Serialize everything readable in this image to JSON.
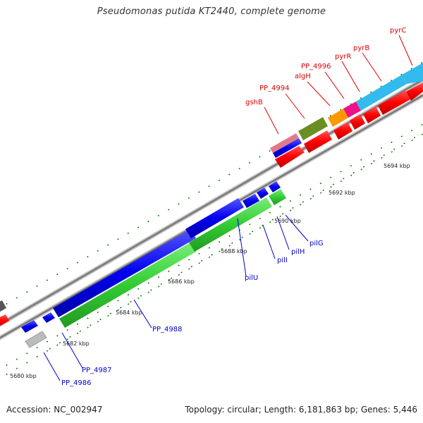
{
  "title": "Pseudomonas putida KT2440, complete genome",
  "footer": {
    "accession": "Accession: NC_002947",
    "summary": "Topology: circular; Length: 6,181,863 bp; Genes: 5,446"
  },
  "scale_labels": [
    "5680 kbp",
    "5682 kbp",
    "5684 kbp",
    "5686 kbp",
    "5688 kbp",
    "5690 kbp",
    "5692 kbp",
    "5694 kbp"
  ],
  "reverse_strand_labels": [
    "PP_4986",
    "PP_4987",
    "PP_4988",
    "pilU",
    "pilI",
    "pilH",
    "pilG"
  ],
  "forward_strand_labels": [
    "gshB",
    "PP_4994",
    "algH",
    "PP_4996",
    "pyrR",
    "pyrB",
    "pyrC"
  ],
  "colors": {
    "forward_label": "#dd0000",
    "reverse_label": "#0000cc",
    "cds_red": "#ff0000",
    "cds_blue": "#0000ee",
    "cds_green": "#33cc33",
    "backbone": "#888888",
    "tick": "#007700"
  }
}
